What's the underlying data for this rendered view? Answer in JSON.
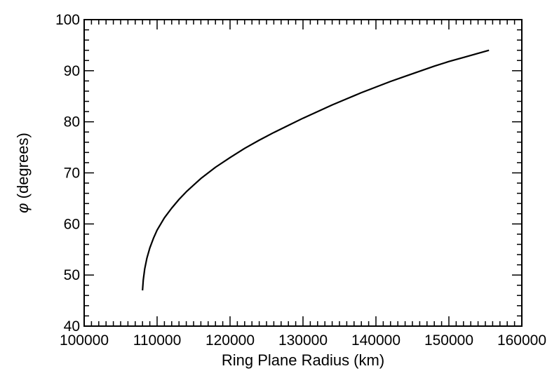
{
  "chart_data": {
    "type": "line",
    "xlabel": "Ring Plane Radius (km)",
    "ylabel_symbol": "φ",
    "ylabel_text": " (degrees)",
    "xlim": [
      100000,
      160000
    ],
    "ylim": [
      40,
      100
    ],
    "xticks": [
      100000,
      110000,
      120000,
      130000,
      140000,
      150000,
      160000
    ],
    "yticks": [
      40,
      50,
      60,
      70,
      80,
      90,
      100
    ],
    "x_minor_step": 1000,
    "y_minor_step": 2,
    "grid": false,
    "series": [
      {
        "color": "#000000",
        "points": [
          [
            108000,
            47.0
          ],
          [
            108100,
            49.0
          ],
          [
            108300,
            51.2
          ],
          [
            108600,
            53.3
          ],
          [
            109000,
            55.3
          ],
          [
            109500,
            57.2
          ],
          [
            110000,
            58.8
          ],
          [
            111000,
            61.2
          ],
          [
            112000,
            63.1
          ],
          [
            113000,
            64.8
          ],
          [
            114000,
            66.3
          ],
          [
            115000,
            67.6
          ],
          [
            116000,
            68.9
          ],
          [
            118000,
            71.1
          ],
          [
            120000,
            73.0
          ],
          [
            122000,
            74.8
          ],
          [
            124000,
            76.4
          ],
          [
            126000,
            77.9
          ],
          [
            128000,
            79.3
          ],
          [
            130000,
            80.7
          ],
          [
            132000,
            82.0
          ],
          [
            134000,
            83.3
          ],
          [
            136000,
            84.5
          ],
          [
            138000,
            85.7
          ],
          [
            140000,
            86.8
          ],
          [
            142000,
            87.9
          ],
          [
            144000,
            88.9
          ],
          [
            146000,
            89.9
          ],
          [
            148000,
            90.9
          ],
          [
            150000,
            91.8
          ],
          [
            152000,
            92.6
          ],
          [
            154000,
            93.4
          ],
          [
            155500,
            94.0
          ]
        ]
      }
    ]
  }
}
